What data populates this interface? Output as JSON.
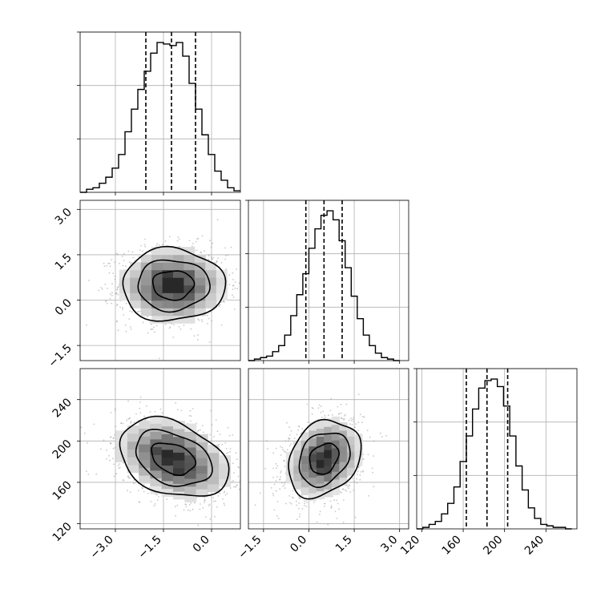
{
  "chart_data": {
    "type": "corner",
    "parameters": [
      {
        "id": "p0",
        "label": "",
        "range": [
          -4.1,
          0.9
        ],
        "ticks": [
          -3.0,
          -1.5,
          0.0
        ],
        "tick_labels": [
          "−3.0",
          "−1.5",
          "0.0"
        ]
      },
      {
        "id": "p1",
        "label": "",
        "range": [
          -2.0,
          3.3
        ],
        "ticks": [
          -1.5,
          0.0,
          1.5,
          3.0
        ],
        "tick_labels": [
          "−1.5",
          "0.0",
          "1.5",
          "3.0"
        ]
      },
      {
        "id": "p2",
        "label": "",
        "range": [
          115,
          270
        ],
        "ticks": [
          120,
          160,
          200,
          240
        ],
        "tick_labels": [
          "120",
          "160",
          "200",
          "240"
        ]
      }
    ],
    "quantiles": {
      "p0": [
        -2.05,
        -1.25,
        -0.5
      ],
      "p1": [
        -0.1,
        0.5,
        1.1
      ],
      "p2": [
        163,
        183,
        203
      ]
    },
    "histograms": {
      "p0": {
        "edges": [
          -4.1,
          -3.9,
          -3.7,
          -3.5,
          -3.3,
          -3.1,
          -2.9,
          -2.7,
          -2.5,
          -2.3,
          -2.1,
          -1.9,
          -1.7,
          -1.5,
          -1.3,
          -1.1,
          -0.9,
          -0.7,
          -0.5,
          -0.3,
          -0.1,
          0.1,
          0.3,
          0.5,
          0.7,
          0.9
        ],
        "counts": [
          0,
          2,
          3,
          6,
          10,
          16,
          25,
          40,
          55,
          68,
          80,
          92,
          99,
          98,
          97,
          99,
          90,
          72,
          55,
          38,
          25,
          14,
          8,
          3,
          1
        ]
      },
      "p1": {
        "edges": [
          -2.0,
          -1.8,
          -1.6,
          -1.4,
          -1.2,
          -1.0,
          -0.8,
          -0.6,
          -0.4,
          -0.2,
          0.0,
          0.2,
          0.4,
          0.6,
          0.8,
          1.0,
          1.2,
          1.4,
          1.6,
          1.8,
          2.0,
          2.2,
          2.4,
          2.6,
          2.8,
          3.0
        ],
        "counts": [
          0,
          1,
          2,
          3,
          6,
          10,
          17,
          30,
          44,
          58,
          75,
          88,
          97,
          100,
          94,
          80,
          62,
          43,
          28,
          17,
          10,
          5,
          2,
          1,
          0
        ]
      },
      "p2": {
        "edges": [
          115,
          121,
          127,
          133,
          139,
          145,
          151,
          157,
          163,
          169,
          175,
          181,
          187,
          193,
          199,
          205,
          211,
          217,
          223,
          229,
          235,
          241,
          247,
          253,
          259,
          265
        ],
        "counts": [
          0,
          1,
          3,
          5,
          10,
          17,
          28,
          45,
          62,
          80,
          94,
          99,
          100,
          95,
          82,
          62,
          42,
          26,
          14,
          7,
          3,
          2,
          1,
          1,
          0
        ]
      }
    },
    "pairs": [
      {
        "x": "p0",
        "y": "p1",
        "center": [
          -1.2,
          0.5
        ],
        "spread": [
          0.8,
          0.6
        ],
        "levels": [
          0.8,
          1.4,
          2.0
        ]
      },
      {
        "x": "p0",
        "y": "p2",
        "center": [
          -1.2,
          183
        ],
        "spread": [
          0.85,
          18
        ],
        "tilt": -0.35,
        "levels": [
          0.8,
          1.4,
          2.0
        ]
      },
      {
        "x": "p1",
        "y": "p2",
        "center": [
          0.5,
          183
        ],
        "spread": [
          0.6,
          18
        ],
        "tilt": 0.25,
        "levels": [
          0.8,
          1.4,
          2.0
        ]
      }
    ],
    "grid": true,
    "colors": {
      "line": "#000000",
      "grid": "#b0b0b0",
      "scatter": "#9a9a9a"
    }
  }
}
